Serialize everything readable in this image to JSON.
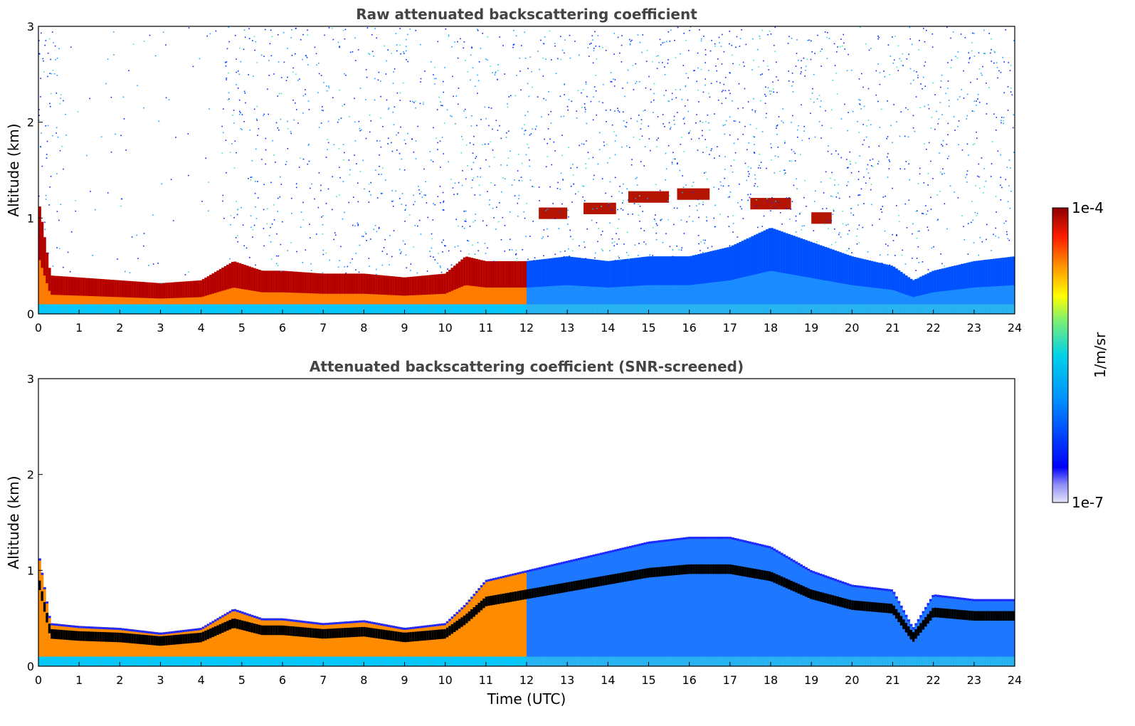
{
  "chart_data": [
    {
      "type": "heatmap",
      "title": "Raw attenuated backscattering coefficient",
      "xlabel": "",
      "ylabel": "Altitude (km)",
      "x_ticks": [
        "0",
        "1",
        "2",
        "3",
        "4",
        "5",
        "6",
        "7",
        "8",
        "9",
        "10",
        "11",
        "12",
        "13",
        "14",
        "15",
        "16",
        "17",
        "18",
        "19",
        "20",
        "21",
        "22",
        "23",
        "24"
      ],
      "y_ticks": [
        "0",
        "1",
        "2",
        "3"
      ],
      "xlim": [
        0,
        24
      ],
      "ylim": [
        0,
        3
      ],
      "grid": false,
      "aerosol_layer_top_km": [
        [
          0.0,
          1.2
        ],
        [
          0.3,
          0.4
        ],
        [
          1.0,
          0.38
        ],
        [
          2.0,
          0.35
        ],
        [
          3.0,
          0.32
        ],
        [
          4.0,
          0.35
        ],
        [
          4.8,
          0.55
        ],
        [
          5.5,
          0.45
        ],
        [
          6.0,
          0.45
        ],
        [
          7.0,
          0.42
        ],
        [
          8.0,
          0.42
        ],
        [
          9.0,
          0.38
        ],
        [
          10.0,
          0.42
        ],
        [
          10.5,
          0.6
        ],
        [
          11.0,
          0.55
        ],
        [
          12.0,
          0.55
        ],
        [
          13.0,
          0.6
        ],
        [
          14.0,
          0.55
        ],
        [
          15.0,
          0.6
        ],
        [
          16.0,
          0.6
        ],
        [
          17.0,
          0.7
        ],
        [
          18.0,
          0.9
        ],
        [
          19.0,
          0.75
        ],
        [
          20.0,
          0.6
        ],
        [
          21.0,
          0.5
        ],
        [
          21.5,
          0.35
        ],
        [
          22.0,
          0.45
        ],
        [
          23.0,
          0.55
        ],
        [
          24.0,
          0.6
        ]
      ],
      "cloud_layers": [
        {
          "t_start": 12.3,
          "t_end": 13.0,
          "altitude_km": 1.05
        },
        {
          "t_start": 13.4,
          "t_end": 14.2,
          "altitude_km": 1.1
        },
        {
          "t_start": 14.5,
          "t_end": 15.5,
          "altitude_km": 1.22
        },
        {
          "t_start": 15.7,
          "t_end": 16.5,
          "altitude_km": 1.25
        },
        {
          "t_start": 17.5,
          "t_end": 18.5,
          "altitude_km": 1.15
        },
        {
          "t_start": 19.0,
          "t_end": 19.5,
          "altitude_km": 1.0
        }
      ]
    },
    {
      "type": "heatmap",
      "title": "Attenuated backscattering coefficient (SNR-screened)",
      "xlabel": "Time (UTC)",
      "ylabel": "Altitude (km)",
      "x_ticks": [
        "0",
        "1",
        "2",
        "3",
        "4",
        "5",
        "6",
        "7",
        "8",
        "9",
        "10",
        "11",
        "12",
        "13",
        "14",
        "15",
        "16",
        "17",
        "18",
        "19",
        "20",
        "21",
        "22",
        "23",
        "24"
      ],
      "y_ticks": [
        "0",
        "1",
        "2",
        "3"
      ],
      "xlim": [
        0,
        24
      ],
      "ylim": [
        0,
        3
      ],
      "grid": false,
      "signal_top_km": [
        [
          0.0,
          1.2
        ],
        [
          0.3,
          0.45
        ],
        [
          1.0,
          0.42
        ],
        [
          2.0,
          0.4
        ],
        [
          3.0,
          0.35
        ],
        [
          4.0,
          0.4
        ],
        [
          4.8,
          0.6
        ],
        [
          5.5,
          0.5
        ],
        [
          6.0,
          0.5
        ],
        [
          7.0,
          0.45
        ],
        [
          8.0,
          0.48
        ],
        [
          9.0,
          0.4
        ],
        [
          10.0,
          0.45
        ],
        [
          10.5,
          0.65
        ],
        [
          11.0,
          0.9
        ],
        [
          12.0,
          1.0
        ],
        [
          13.0,
          1.1
        ],
        [
          14.0,
          1.2
        ],
        [
          15.0,
          1.3
        ],
        [
          16.0,
          1.35
        ],
        [
          17.0,
          1.35
        ],
        [
          18.0,
          1.25
        ],
        [
          19.0,
          1.0
        ],
        [
          20.0,
          0.85
        ],
        [
          21.0,
          0.8
        ],
        [
          21.5,
          0.4
        ],
        [
          22.0,
          0.75
        ],
        [
          23.0,
          0.7
        ],
        [
          24.0,
          0.7
        ]
      ]
    }
  ],
  "colorbar": {
    "label": "1/m/sr",
    "max_label": "1e-4",
    "min_label": "1e-7",
    "scale": "log",
    "colormap": "jet",
    "colors": [
      "#e4e4f8",
      "#0000ff",
      "#00b4ff",
      "#00e6c8",
      "#a0f050",
      "#ffff00",
      "#ff9600",
      "#ff0000",
      "#8c0000"
    ]
  }
}
